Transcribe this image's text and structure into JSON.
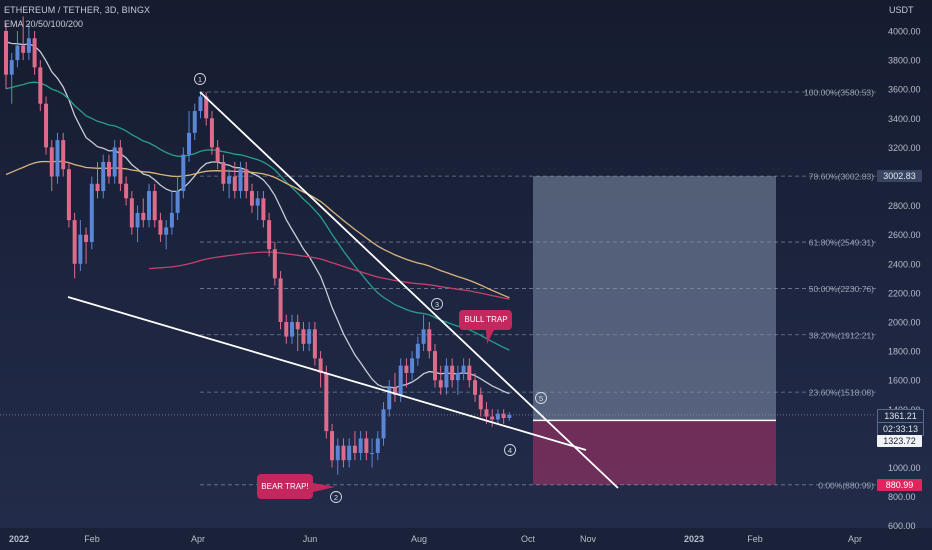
{
  "header": {
    "title": "ETHEREUM / TETHER, 3D, BINGX",
    "indicator": "EMA 20/50/100/200",
    "currency": "USDT"
  },
  "colors": {
    "up": "#5b86d6",
    "down": "#e06a8a",
    "ema20": "#c8ccd8",
    "ema50": "#2a9d8c",
    "ema100": "#d9b47e",
    "ema200": "#c4416e",
    "target_zone": "#9aa8c4",
    "stop_zone": "#b1336c",
    "trap_badge": "#c4275d",
    "stop_badge": "#e0245e"
  },
  "price_boxes": {
    "target": "3002.83",
    "current": "1361.21",
    "countdown": "02:33:13",
    "level": "1323.72",
    "stop": "880.99"
  },
  "annotations": {
    "bull_trap": "BULL TRAP",
    "bear_trap": "BEAR TRAP!",
    "waves": [
      "①",
      "②",
      "③",
      "④",
      "⑤"
    ]
  },
  "chart_data": {
    "type": "candlestick",
    "title": "ETHEREUM / TETHER, 3D, BINGX",
    "ylabel": "USDT",
    "y_ticks": [
      600,
      800,
      1000,
      1200,
      1400,
      1600,
      1800,
      2000,
      2200,
      2400,
      2600,
      2800,
      3000,
      3200,
      3400,
      3600,
      3800,
      4000
    ],
    "y_tick_labels": [
      "600.00",
      "800.00",
      "1000.00",
      "1200.00",
      "1400.00",
      "1600.00",
      "1800.00",
      "2000.00",
      "2200.00",
      "2400.00",
      "2600.00",
      "2800.00",
      "3000.00",
      "3200.00",
      "3400.00",
      "3600.00",
      "3800.00",
      "4000.00"
    ],
    "x_ticks": [
      "2022",
      "Feb",
      "Apr",
      "Jun",
      "Aug",
      "Oct",
      "Nov",
      "2023",
      "Feb",
      "Apr"
    ],
    "fib_levels": [
      {
        "ratio": "100.00%",
        "price": 3580.53,
        "label": "100.00%(3580.53)"
      },
      {
        "ratio": "78.60%",
        "price": 3002.83,
        "label": "78.60%(3002.83)"
      },
      {
        "ratio": "61.80%",
        "price": 2549.31,
        "label": "61.80%(2549.31)"
      },
      {
        "ratio": "50.00%",
        "price": 2230.76,
        "label": "50.00%(2230.76)"
      },
      {
        "ratio": "38.20%",
        "price": 1912.21,
        "label": "38.20%(1912.21)"
      },
      {
        "ratio": "23.60%",
        "price": 1518.08,
        "label": "23.60%(1518.08)"
      },
      {
        "ratio": "0.00%",
        "price": 880.99,
        "label": "0.00%(880.99)"
      }
    ],
    "candles": [
      [
        4000,
        3700,
        4050,
        3600
      ],
      [
        3700,
        3800,
        3850,
        3500
      ],
      [
        3800,
        3900,
        4000,
        3750
      ],
      [
        3900,
        3850,
        4100,
        3800
      ],
      [
        3850,
        3950,
        4050,
        3800
      ],
      [
        3950,
        3750,
        4000,
        3700
      ],
      [
        3750,
        3500,
        3800,
        3450
      ],
      [
        3500,
        3200,
        3550,
        3150
      ],
      [
        3200,
        3000,
        3250,
        2900
      ],
      [
        3000,
        3250,
        3300,
        2950
      ],
      [
        3250,
        3050,
        3300,
        3000
      ],
      [
        3050,
        2700,
        3100,
        2650
      ],
      [
        2700,
        2400,
        2750,
        2300
      ],
      [
        2400,
        2600,
        2700,
        2350
      ],
      [
        2600,
        2550,
        2650,
        2400
      ],
      [
        2550,
        2950,
        3000,
        2500
      ],
      [
        2950,
        2900,
        3100,
        2850
      ],
      [
        2900,
        3100,
        3150,
        2850
      ],
      [
        3100,
        3000,
        3150,
        2950
      ],
      [
        3000,
        3200,
        3250,
        2950
      ],
      [
        3200,
        2950,
        3250,
        2900
      ],
      [
        2950,
        2850,
        3000,
        2800
      ],
      [
        2850,
        2650,
        2900,
        2600
      ],
      [
        2650,
        2750,
        2800,
        2550
      ],
      [
        2750,
        2700,
        2850,
        2650
      ],
      [
        2700,
        2900,
        2950,
        2650
      ],
      [
        2900,
        2700,
        2950,
        2650
      ],
      [
        2700,
        2600,
        2750,
        2550
      ],
      [
        2600,
        2650,
        2700,
        2500
      ],
      [
        2650,
        2750,
        2900,
        2600
      ],
      [
        2750,
        2900,
        3000,
        2700
      ],
      [
        2900,
        3150,
        3200,
        2850
      ],
      [
        3150,
        3300,
        3450,
        3100
      ],
      [
        3300,
        3450,
        3500,
        3250
      ],
      [
        3450,
        3550,
        3580,
        3400
      ],
      [
        3550,
        3400,
        3580,
        3350
      ],
      [
        3400,
        3200,
        3450,
        3150
      ],
      [
        3200,
        3100,
        3250,
        3050
      ],
      [
        3100,
        2950,
        3150,
        2900
      ],
      [
        2950,
        3000,
        3050,
        2850
      ],
      [
        3000,
        2900,
        3100,
        2850
      ],
      [
        2900,
        3050,
        3100,
        2850
      ],
      [
        3050,
        2900,
        3100,
        2850
      ],
      [
        2900,
        2800,
        2950,
        2750
      ],
      [
        2800,
        2850,
        2900,
        2700
      ],
      [
        2850,
        2700,
        2900,
        2650
      ],
      [
        2700,
        2500,
        2750,
        2450
      ],
      [
        2500,
        2300,
        2550,
        2250
      ],
      [
        2300,
        2000,
        2350,
        1950
      ],
      [
        2000,
        1900,
        2050,
        1850
      ],
      [
        1900,
        2000,
        2050,
        1850
      ],
      [
        2000,
        1950,
        2050,
        1800
      ],
      [
        1950,
        1850,
        2000,
        1800
      ],
      [
        1850,
        1950,
        2000,
        1800
      ],
      [
        1950,
        1750,
        2000,
        1700
      ],
      [
        1750,
        1650,
        1800,
        1550
      ],
      [
        1650,
        1250,
        1700,
        1200
      ],
      [
        1250,
        1050,
        1300,
        1000
      ],
      [
        1050,
        1150,
        1200,
        950
      ],
      [
        1150,
        1050,
        1200,
        1000
      ],
      [
        1050,
        1150,
        1200,
        1000
      ],
      [
        1150,
        1100,
        1250,
        1050
      ],
      [
        1100,
        1200,
        1250,
        1050
      ],
      [
        1200,
        1100,
        1250,
        1050
      ],
      [
        1100,
        1100,
        1200,
        1000
      ],
      [
        1100,
        1200,
        1250,
        1050
      ],
      [
        1200,
        1400,
        1450,
        1150
      ],
      [
        1400,
        1550,
        1600,
        1350
      ],
      [
        1550,
        1500,
        1650,
        1450
      ],
      [
        1500,
        1700,
        1750,
        1450
      ],
      [
        1700,
        1650,
        1750,
        1550
      ],
      [
        1650,
        1750,
        1800,
        1600
      ],
      [
        1750,
        1850,
        1900,
        1700
      ],
      [
        1850,
        1950,
        2050,
        1800
      ],
      [
        1950,
        1800,
        2000,
        1750
      ],
      [
        1800,
        1600,
        1850,
        1550
      ],
      [
        1600,
        1550,
        1700,
        1500
      ],
      [
        1550,
        1700,
        1750,
        1500
      ],
      [
        1700,
        1600,
        1750,
        1550
      ],
      [
        1600,
        1650,
        1700,
        1500
      ],
      [
        1650,
        1700,
        1750,
        1600
      ],
      [
        1700,
        1600,
        1750,
        1550
      ],
      [
        1600,
        1500,
        1650,
        1450
      ],
      [
        1500,
        1400,
        1550,
        1350
      ],
      [
        1400,
        1350,
        1450,
        1300
      ],
      [
        1350,
        1330,
        1400,
        1280
      ],
      [
        1330,
        1370,
        1400,
        1300
      ],
      [
        1370,
        1340,
        1400,
        1300
      ],
      [
        1340,
        1361,
        1380,
        1320
      ]
    ]
  }
}
